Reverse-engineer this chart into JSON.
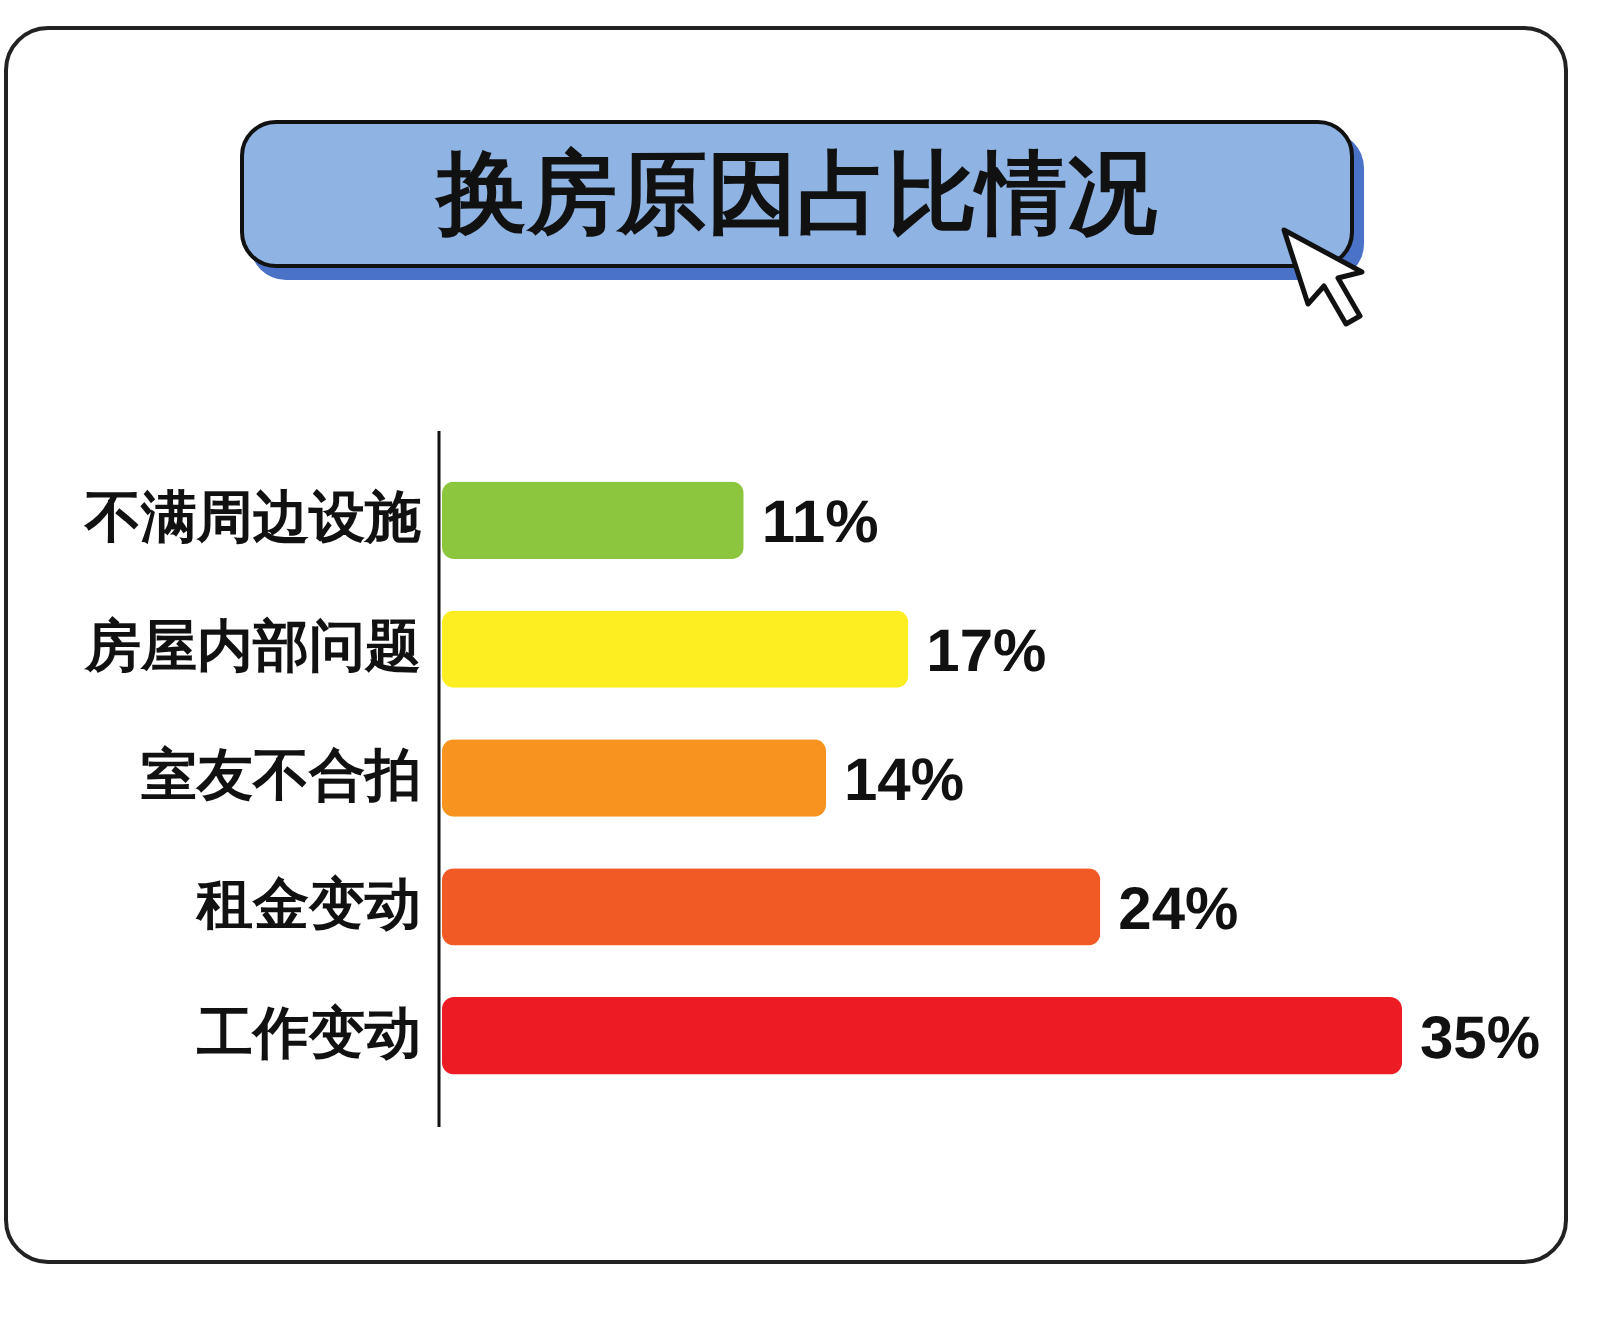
{
  "chart_data": {
    "type": "bar",
    "orientation": "horizontal",
    "title": "换房原因占比情况",
    "categories": [
      "不满周边设施",
      "房屋内部问题",
      "室友不合拍",
      "租金变动",
      "工作变动"
    ],
    "values": [
      11,
      17,
      14,
      24,
      35
    ],
    "colors": [
      "#8cc63f",
      "#fcee21",
      "#f7931e",
      "#f15a24",
      "#ed1c24"
    ],
    "value_labels": [
      "11%",
      "17%",
      "14%",
      "24%",
      "35%"
    ],
    "tick_labels": "y"
  }
}
